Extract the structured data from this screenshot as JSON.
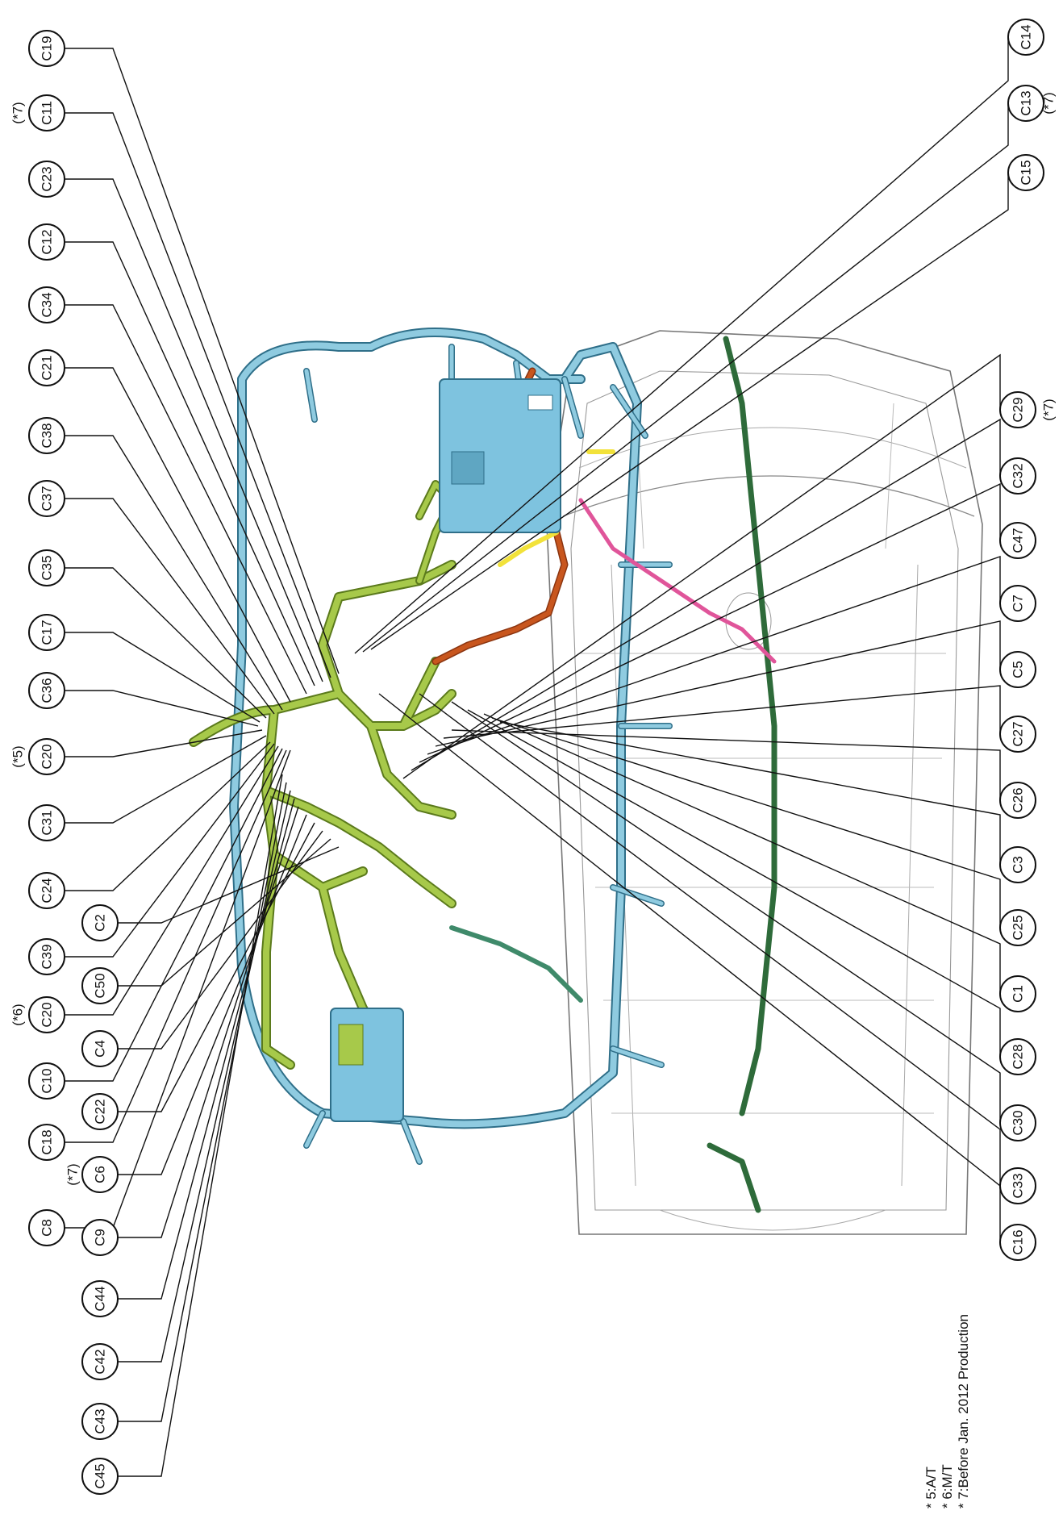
{
  "diagram": {
    "connectors_left": [
      "C8",
      "C18",
      "C10",
      "C20",
      "C39",
      "C24",
      "C31",
      "C20",
      "C36",
      "C17",
      "C35",
      "C37",
      "C38",
      "C21",
      "C34",
      "C12",
      "C23",
      "C11",
      "C19"
    ],
    "left_notes": {
      "C20_a": "(*6)",
      "C20_b": "(*5)",
      "C19": "(*7)"
    },
    "connectors_top": [
      "C14",
      "C13",
      "C15"
    ],
    "top_notes": {
      "C13": "(*7)"
    },
    "connectors_right": [
      "C16",
      "C33",
      "C30",
      "C28",
      "C1",
      "C25",
      "C3",
      "C26",
      "C27",
      "C5",
      "C7",
      "C47",
      "C32",
      "C29"
    ],
    "right_notes": {
      "C29": "(*7)"
    },
    "connectors_bottom": [
      "C45",
      "C43",
      "C42",
      "C44",
      "C9",
      "C6",
      "C22",
      "C4",
      "C50",
      "C2"
    ],
    "bottom_notes": {
      "C6": "(*7)"
    },
    "legend": [
      "* 5:A/T",
      "* 6:M/T",
      "* 7:Before Jan. 2012 Production"
    ],
    "colors": {
      "harness_blue": "#8fcbe0",
      "harness_green": "#a7c94a",
      "harness_dark_green": "#2e6b3a",
      "harness_orange": "#c8561e",
      "harness_pink": "#e0559a",
      "harness_yellow": "#f2e23a",
      "ecu_blue": "#7ec3df"
    }
  }
}
